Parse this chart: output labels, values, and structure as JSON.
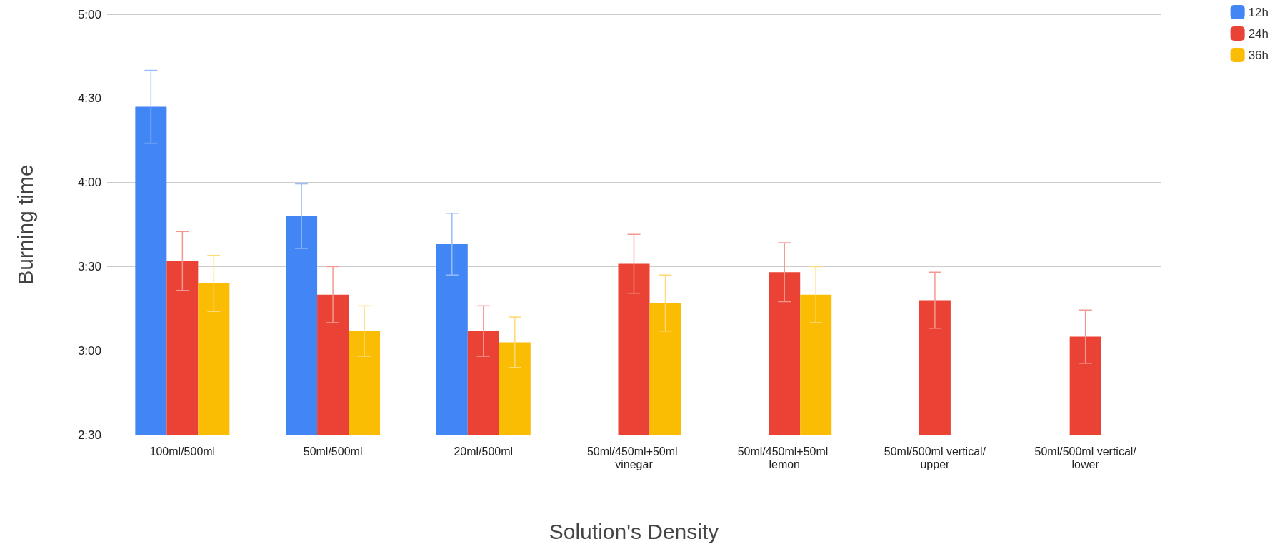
{
  "chart_data": {
    "type": "bar",
    "xlabel": "Solution's Density",
    "ylabel": "Burning time",
    "categories": [
      "100ml/500ml",
      "50ml/500ml",
      "20ml/500ml",
      "50ml/450ml+50ml vinegar",
      "50ml/450ml+50ml lemon",
      "50ml/500ml vertical/upper",
      "50ml/500ml vertical/lower"
    ],
    "series": [
      {
        "name": "12h",
        "color": "#4285f4",
        "values": [
          267,
          228,
          218,
          null,
          null,
          null,
          null
        ],
        "errors": [
          13,
          11.5,
          11,
          null,
          null,
          null,
          null
        ]
      },
      {
        "name": "24h",
        "color": "#ea4335",
        "values": [
          212,
          200,
          187,
          211,
          208,
          198,
          185
        ],
        "errors": [
          10.5,
          10,
          9,
          10.5,
          10.5,
          10,
          9.5
        ]
      },
      {
        "name": "36h",
        "color": "#fbbc04",
        "values": [
          204,
          187,
          183,
          197,
          200,
          null,
          null
        ],
        "errors": [
          10,
          9,
          9,
          10,
          10,
          null,
          null
        ]
      }
    ],
    "ylim": [
      150,
      300
    ],
    "yticks": [
      {
        "value": 150,
        "label": "2:30"
      },
      {
        "value": 180,
        "label": "3:00"
      },
      {
        "value": 210,
        "label": "3:30"
      },
      {
        "value": 240,
        "label": "4:00"
      },
      {
        "value": 270,
        "label": "4:30"
      },
      {
        "value": 300,
        "label": "5:00"
      }
    ],
    "grid": "y",
    "legend": "top right"
  }
}
